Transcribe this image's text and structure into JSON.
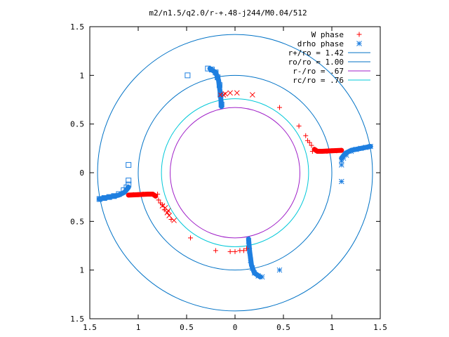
{
  "chart_data": {
    "type": "scatter",
    "title": "m2/n1.5/q2.0/r-+.48-j244/M0.04/512",
    "xlim": [
      -1.5,
      1.5
    ],
    "ylim": [
      -1.5,
      1.5
    ],
    "xticks": [
      -1.5,
      -1,
      -0.5,
      0,
      0.5,
      1,
      1.5
    ],
    "xtick_labels": [
      "1.5",
      "1",
      "0.5",
      "0",
      "0.5",
      "1",
      "1.5"
    ],
    "yticks": [
      1.5,
      1,
      0.5,
      0,
      -0.5,
      -1,
      -1.5
    ],
    "ytick_labels": [
      "1.5",
      "1",
      "0.5",
      "0",
      "0.5",
      "1",
      "1.5"
    ],
    "grid": false,
    "legend_position": "top-right",
    "circles": [
      {
        "label": "r+/ro = 1.42",
        "r": 1.42,
        "color": "#0072c6"
      },
      {
        "label": "ro/ro = 1.00",
        "r": 1.0,
        "color": "#0072c6"
      },
      {
        "label": "r-/ro =  .67",
        "r": 0.67,
        "color": "#a020c8"
      },
      {
        "label": "rc/ro =  .76",
        "r": 0.76,
        "color": "#00c8d8"
      }
    ],
    "series": [
      {
        "name": "W phase",
        "marker": "plus",
        "color": "#ff0000",
        "points": [
          [
            0.8,
            0.22
          ],
          [
            0.86,
            0.22
          ],
          [
            0.9,
            0.22
          ],
          [
            0.95,
            0.22
          ],
          [
            1.0,
            0.225
          ],
          [
            1.05,
            0.225
          ],
          [
            1.1,
            0.23
          ],
          [
            0.82,
            0.24
          ],
          [
            0.79,
            0.28
          ],
          [
            0.77,
            0.31
          ],
          [
            0.75,
            0.33
          ],
          [
            0.73,
            0.38
          ],
          [
            0.66,
            0.48
          ],
          [
            0.46,
            0.67
          ],
          [
            -0.8,
            -0.22
          ],
          [
            -0.86,
            -0.22
          ],
          [
            -0.9,
            -0.22
          ],
          [
            -0.95,
            -0.22
          ],
          [
            -1.0,
            -0.225
          ],
          [
            -1.05,
            -0.225
          ],
          [
            -1.1,
            -0.23
          ],
          [
            -0.82,
            -0.24
          ],
          [
            -0.79,
            -0.28
          ],
          [
            -0.77,
            -0.31
          ],
          [
            -0.75,
            -0.33
          ],
          [
            -0.73,
            -0.38
          ],
          [
            -0.66,
            -0.48
          ],
          [
            -0.46,
            -0.67
          ],
          [
            0.12,
            -0.78
          ],
          [
            0.09,
            -0.8
          ],
          [
            0.05,
            -0.8
          ],
          [
            0.0,
            -0.81
          ],
          [
            -0.05,
            -0.81
          ],
          [
            -0.2,
            -0.8
          ]
        ]
      },
      {
        "name": "W phase (cross)",
        "marker": "x",
        "color": "#ff0000",
        "points": [
          [
            -0.15,
            0.8
          ],
          [
            -0.12,
            0.8
          ],
          [
            -0.1,
            0.81
          ],
          [
            -0.05,
            0.82
          ],
          [
            0.02,
            0.82
          ],
          [
            0.18,
            0.8
          ],
          [
            -0.69,
            -0.39
          ],
          [
            -0.7,
            -0.41
          ],
          [
            -0.68,
            -0.44
          ],
          [
            -0.63,
            -0.49
          ],
          [
            -0.72,
            -0.36
          ],
          [
            -0.75,
            -0.34
          ]
        ]
      },
      {
        "name": "drho phase",
        "marker": "star",
        "color": "#1e7fe0",
        "points": [
          [
            1.1,
            0.08
          ],
          [
            1.1,
            0.12
          ],
          [
            1.12,
            0.15
          ],
          [
            1.15,
            0.18
          ],
          [
            1.2,
            0.22
          ],
          [
            1.25,
            0.24
          ],
          [
            1.3,
            0.25
          ],
          [
            1.35,
            0.26
          ],
          [
            1.4,
            0.27
          ],
          [
            1.1,
            -0.09
          ],
          [
            0.14,
            -0.7
          ],
          [
            0.15,
            -0.8
          ],
          [
            0.16,
            -0.9
          ],
          [
            0.18,
            -0.98
          ],
          [
            0.2,
            -1.03
          ],
          [
            0.24,
            -1.06
          ],
          [
            0.28,
            -1.07
          ],
          [
            0.46,
            -1.0
          ]
        ]
      },
      {
        "name": "drho phase (box)",
        "marker": "square",
        "color": "#1e7fe0",
        "points": [
          [
            -1.1,
            -0.08
          ],
          [
            -1.1,
            -0.12
          ],
          [
            -1.12,
            -0.15
          ],
          [
            -1.15,
            -0.18
          ],
          [
            -1.2,
            -0.22
          ],
          [
            -1.25,
            -0.24
          ],
          [
            -1.3,
            -0.25
          ],
          [
            -1.35,
            -0.26
          ],
          [
            -1.4,
            -0.27
          ],
          [
            -1.1,
            0.08
          ],
          [
            -0.14,
            0.7
          ],
          [
            -0.15,
            0.8
          ],
          [
            -0.16,
            0.9
          ],
          [
            -0.18,
            0.98
          ],
          [
            -0.2,
            1.03
          ],
          [
            -0.24,
            1.06
          ],
          [
            -0.28,
            1.07
          ],
          [
            -0.49,
            1.0
          ]
        ]
      }
    ],
    "thick_branches": [
      {
        "color": "#ff0000",
        "points": [
          [
            0.82,
            0.24
          ],
          [
            0.85,
            0.22
          ],
          [
            0.9,
            0.22
          ],
          [
            1.0,
            0.225
          ],
          [
            1.1,
            0.23
          ]
        ]
      },
      {
        "color": "#ff0000",
        "points": [
          [
            -0.82,
            -0.24
          ],
          [
            -0.85,
            -0.22
          ],
          [
            -0.9,
            -0.22
          ],
          [
            -1.0,
            -0.225
          ],
          [
            -1.1,
            -0.23
          ]
        ]
      },
      {
        "color": "#1e7fe0",
        "points": [
          [
            1.1,
            0.15
          ],
          [
            1.14,
            0.2
          ],
          [
            1.2,
            0.23
          ],
          [
            1.3,
            0.25
          ],
          [
            1.4,
            0.27
          ]
        ]
      },
      {
        "color": "#1e7fe0",
        "points": [
          [
            -1.1,
            -0.15
          ],
          [
            -1.14,
            -0.2
          ],
          [
            -1.2,
            -0.23
          ],
          [
            -1.3,
            -0.25
          ],
          [
            -1.4,
            -0.27
          ]
        ]
      },
      {
        "color": "#1e7fe0",
        "points": [
          [
            0.14,
            -0.68
          ],
          [
            0.15,
            -0.8
          ],
          [
            0.17,
            -0.95
          ],
          [
            0.2,
            -1.03
          ],
          [
            0.26,
            -1.07
          ]
        ]
      },
      {
        "color": "#1e7fe0",
        "points": [
          [
            -0.14,
            0.68
          ],
          [
            -0.15,
            0.8
          ],
          [
            -0.17,
            0.95
          ],
          [
            -0.2,
            1.03
          ],
          [
            -0.26,
            1.07
          ]
        ]
      }
    ],
    "legend": [
      {
        "label": "W phase",
        "marker": "plus",
        "color": "#ff0000"
      },
      {
        "label": "drho phase",
        "marker": "star",
        "color": "#1e7fe0"
      },
      {
        "label": "r+/ro = 1.42",
        "line": true,
        "color": "#0072c6"
      },
      {
        "label": "ro/ro = 1.00",
        "line": true,
        "color": "#0072c6"
      },
      {
        "label": "r-/ro =  .67",
        "line": true,
        "color": "#a020c8"
      },
      {
        "label": "rc/ro =  .76",
        "line": true,
        "color": "#00c8d8"
      }
    ]
  }
}
